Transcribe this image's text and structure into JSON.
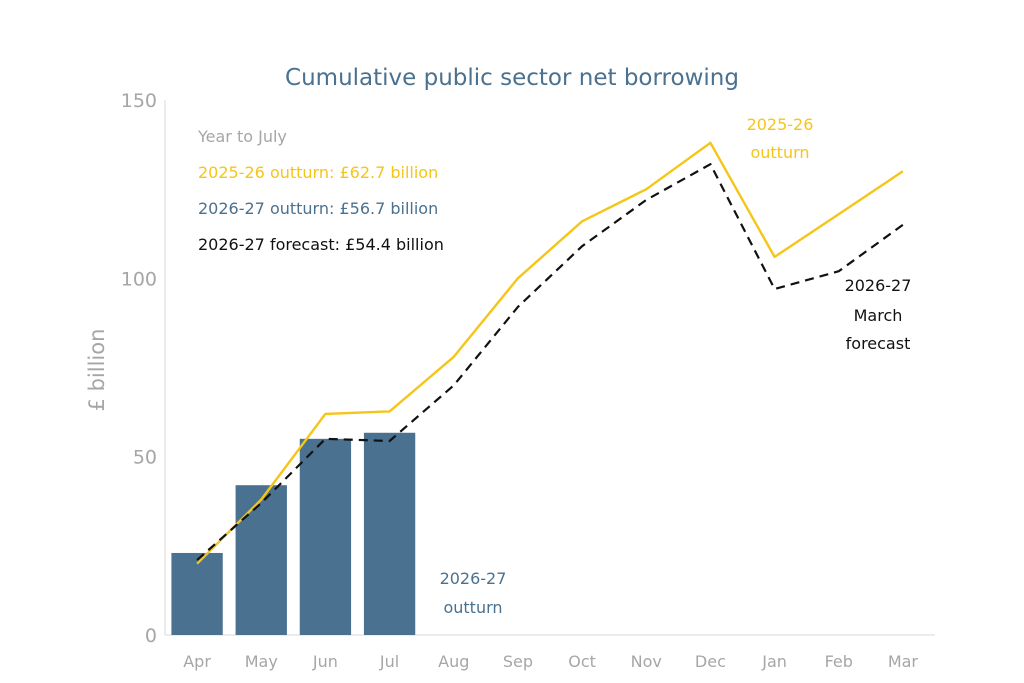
{
  "colors": {
    "outturn_2025": "#f5c518",
    "outturn_2026": "#4a718f",
    "forecast_2026": "#111111",
    "axis_text": "#a6a6a6",
    "title": "#4a718f",
    "note_heading": "#a6a6a6"
  },
  "chart_data": {
    "type": "bar",
    "title": "Cumulative public sector net borrowing",
    "xlabel": "",
    "ylabel": "£ billion",
    "ylim": [
      0,
      150
    ],
    "yticks": [
      0,
      50,
      100,
      150
    ],
    "categories": [
      "Apr",
      "May",
      "Jun",
      "Jul",
      "Aug",
      "Sep",
      "Oct",
      "Nov",
      "Dec",
      "Jan",
      "Feb",
      "Mar"
    ],
    "series": [
      {
        "name": "2026-27 outturn",
        "kind": "bar",
        "values": [
          23,
          42,
          55,
          56.7,
          null,
          null,
          null,
          null,
          null,
          null,
          null,
          null
        ]
      },
      {
        "name": "2025-26 outturn",
        "kind": "line",
        "style": "solid",
        "values": [
          20,
          38,
          62,
          62.7,
          78,
          100,
          116,
          125,
          138,
          106,
          118,
          130
        ]
      },
      {
        "name": "2026-27 March forecast",
        "kind": "line",
        "style": "dashed",
        "values": [
          21,
          37,
          55,
          54.4,
          70,
          92,
          109,
          122,
          132,
          97,
          102,
          115
        ]
      }
    ],
    "grid": false,
    "legend": "top-left",
    "note": {
      "heading": "Year to July",
      "lines": [
        "2025-26 outturn: £62.7 billion",
        "2026-27 outturn: £56.7 billion",
        "2026-27 forecast: £54.4 billion"
      ]
    },
    "annotations": {
      "outturn_2025": [
        "2025-26",
        "outturn"
      ],
      "forecast_2026": [
        "2026-27",
        "March",
        "forecast"
      ],
      "outturn_2026": [
        "2026-27",
        "outturn"
      ]
    }
  }
}
